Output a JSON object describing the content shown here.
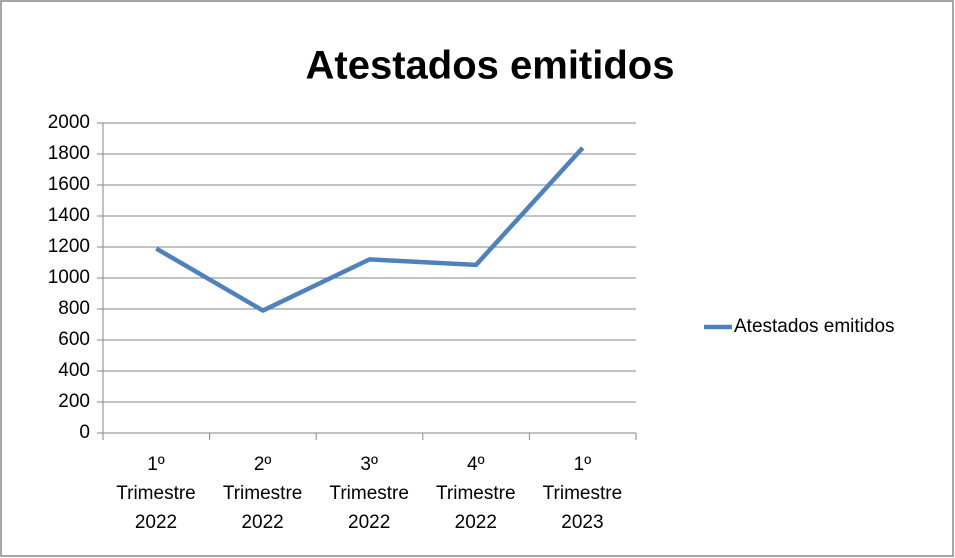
{
  "chart_data": {
    "type": "line",
    "title": "Atestados emitidos",
    "categories": [
      "1º\nTrimestre\n2022",
      "2º\nTrimestre\n2022",
      "3º\nTrimestre\n2022",
      "4º\nTrimestre\n2022",
      "1º\nTrimestre\n2023"
    ],
    "series": [
      {
        "name": "Atestados emitidos",
        "color": "#4f81bd",
        "values": [
          1190,
          790,
          1120,
          1085,
          1840
        ]
      }
    ],
    "ylim": [
      0,
      2000
    ],
    "yticks": [
      0,
      200,
      400,
      600,
      800,
      1000,
      1200,
      1400,
      1600,
      1800,
      2000
    ],
    "grid": true,
    "legend": "right"
  }
}
